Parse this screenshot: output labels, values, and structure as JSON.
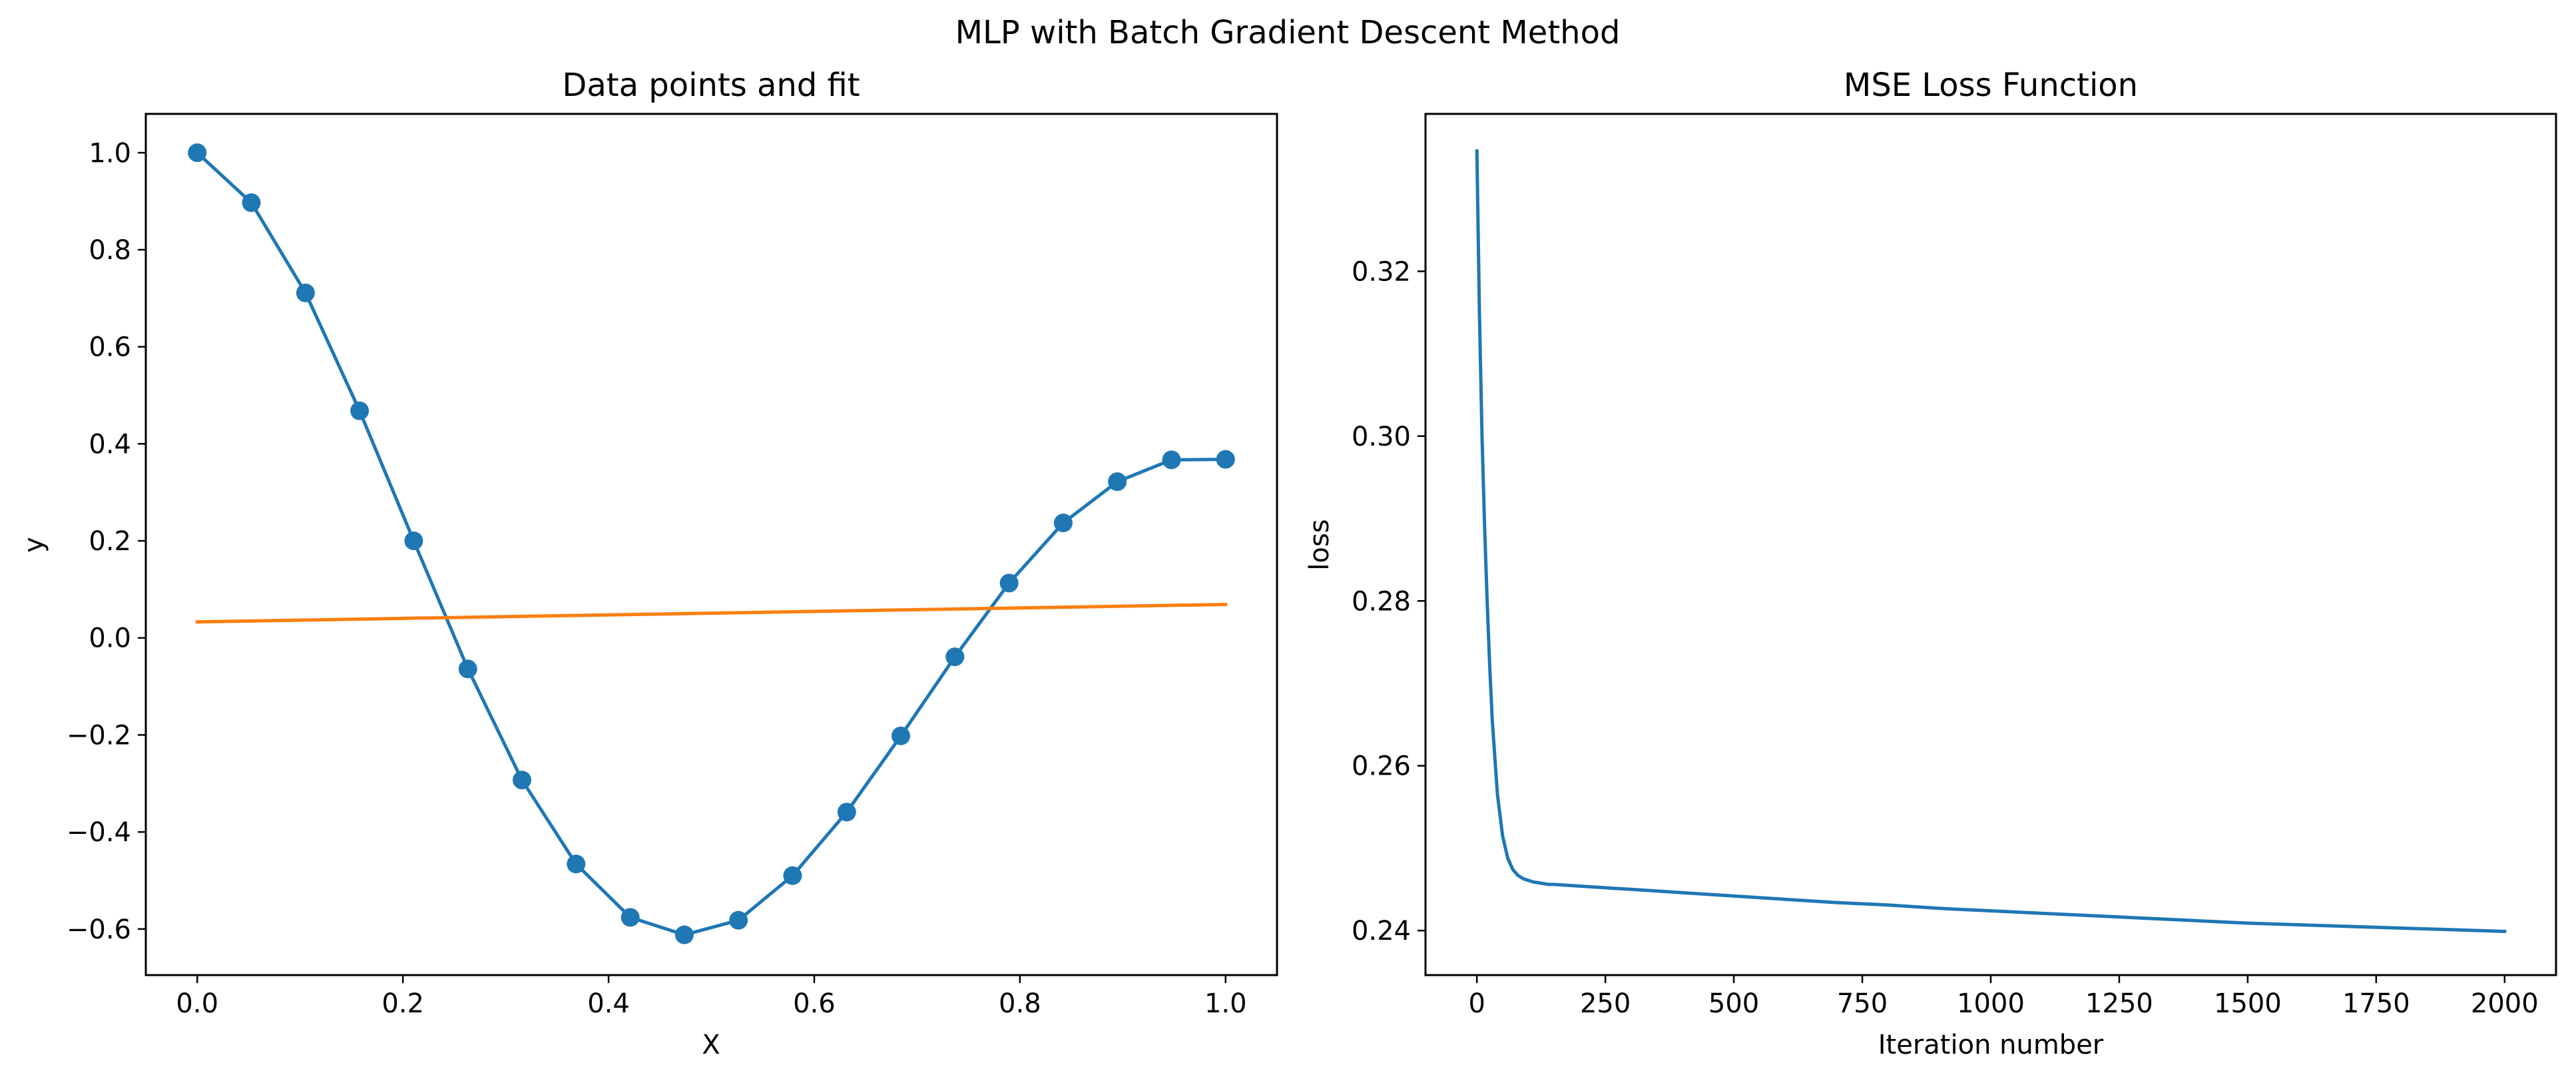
{
  "figure": {
    "suptitle": "MLP with Batch Gradient Descent Method"
  },
  "chart_data": [
    {
      "type": "line",
      "title": "Data points and fit",
      "xlabel": "X",
      "ylabel": "y",
      "xlim": [
        -0.05,
        1.05
      ],
      "ylim": [
        -0.695,
        1.08
      ],
      "xticks": [
        0.0,
        0.2,
        0.4,
        0.6,
        0.8,
        1.0
      ],
      "xtick_labels": [
        "0.0",
        "0.2",
        "0.4",
        "0.6",
        "0.8",
        "1.0"
      ],
      "yticks": [
        -0.6,
        -0.4,
        -0.2,
        0.0,
        0.2,
        0.4,
        0.6,
        0.8,
        1.0
      ],
      "ytick_labels": [
        "−0.6",
        "−0.4",
        "−0.2",
        "0.0",
        "0.2",
        "0.4",
        "0.6",
        "0.8",
        "1.0"
      ],
      "grid": false,
      "series": [
        {
          "kind": "line-markers",
          "color": "#1f77b4",
          "x": [
            0.0,
            0.0526,
            0.1053,
            0.1579,
            0.2105,
            0.2632,
            0.3158,
            0.3684,
            0.4211,
            0.4737,
            0.5263,
            0.5789,
            0.6316,
            0.6842,
            0.7368,
            0.7895,
            0.8421,
            0.8947,
            0.9474,
            1.0
          ],
          "y": [
            1.0,
            0.897,
            0.711,
            0.468,
            0.2,
            -0.064,
            -0.293,
            -0.466,
            -0.576,
            -0.612,
            -0.582,
            -0.49,
            -0.359,
            -0.202,
            -0.039,
            0.113,
            0.237,
            0.322,
            0.367,
            0.368
          ]
        },
        {
          "kind": "line",
          "color": "#ff7f0e",
          "x": [
            0.0,
            1.0
          ],
          "y": [
            0.033,
            0.069
          ]
        }
      ]
    },
    {
      "type": "line",
      "title": "MSE Loss Function",
      "xlabel": "Iteration number",
      "ylabel": "loss",
      "xlim": [
        -100,
        2100
      ],
      "ylim": [
        0.2346,
        0.3391
      ],
      "xticks": [
        0,
        250,
        500,
        750,
        1000,
        1250,
        1500,
        1750,
        2000
      ],
      "xtick_labels": [
        "0",
        "250",
        "500",
        "750",
        "1000",
        "1250",
        "1500",
        "1750",
        "2000"
      ],
      "yticks": [
        0.24,
        0.26,
        0.28,
        0.3,
        0.32
      ],
      "ytick_labels": [
        "0.24",
        "0.26",
        "0.28",
        "0.30",
        "0.32"
      ],
      "grid": false,
      "series": [
        {
          "kind": "line",
          "color": "#1f77b4",
          "x": [
            0,
            5,
            10,
            15,
            20,
            25,
            30,
            40,
            50,
            60,
            70,
            80,
            90,
            100,
            110,
            120,
            130,
            140,
            150,
            175,
            200,
            300,
            400,
            500,
            600,
            700,
            800,
            900,
            1000,
            1100,
            1200,
            1300,
            1400,
            1500,
            1600,
            1700,
            1800,
            1900,
            2000
          ],
          "y": [
            0.3346,
            0.315,
            0.3,
            0.289,
            0.28,
            0.272,
            0.2655,
            0.2565,
            0.2515,
            0.2488,
            0.2474,
            0.2467,
            0.2463,
            0.2461,
            0.2459,
            0.2458,
            0.2457,
            0.2456,
            0.2456,
            0.2455,
            0.2454,
            0.245,
            0.2446,
            0.2442,
            0.2438,
            0.2434,
            0.2431,
            0.2427,
            0.2424,
            0.2421,
            0.2418,
            0.2415,
            0.2412,
            0.2409,
            0.2407,
            0.2405,
            0.2403,
            0.2401,
            0.2399
          ]
        }
      ]
    }
  ]
}
